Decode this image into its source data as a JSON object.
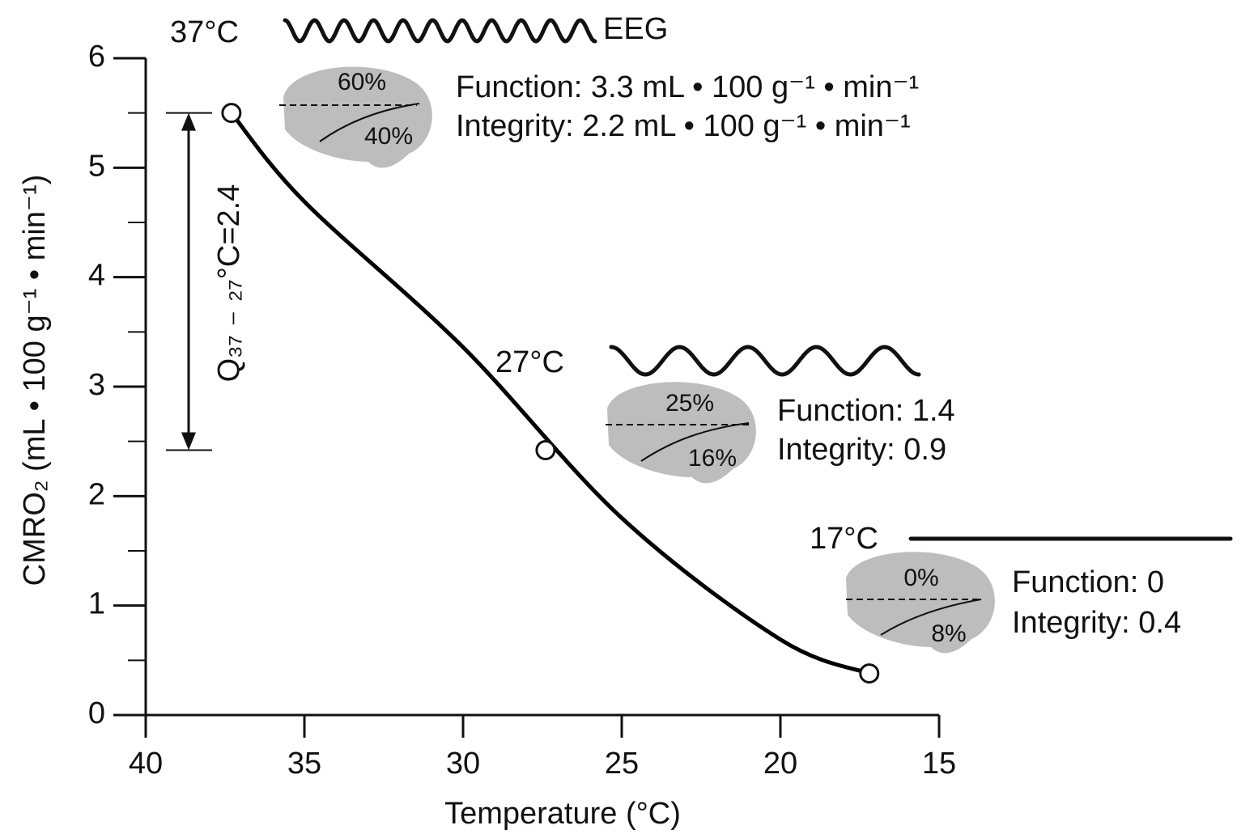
{
  "chart_data": {
    "type": "line",
    "x_label": "Temperature (°C)",
    "y_label": "CMRO₂ (mL • 100 g⁻¹ • min⁻¹)",
    "xlim": [
      40,
      15
    ],
    "xticks": [
      40,
      35,
      30,
      25,
      20,
      15
    ],
    "ylim": [
      0,
      6
    ],
    "yticks": [
      0,
      1,
      2,
      3,
      4,
      5,
      6
    ],
    "y_minor_ticks": [
      0.5,
      1.5,
      2.5,
      3.5,
      4.5,
      5.5
    ],
    "series": [
      {
        "color": "#000000",
        "x": [
          37.3,
          35,
          30,
          25,
          20,
          17.2
        ],
        "values": [
          5.5,
          4.69,
          3.36,
          1.8,
          0.69,
          0.38
        ]
      }
    ],
    "points": {
      "x": [
        37.3,
        27.4,
        17.2
      ],
      "values": [
        5.5,
        2.42,
        0.38
      ]
    },
    "annotations": [
      "37°C",
      "EEG",
      "60%",
      "40%",
      "Function: 3.3 mL • 100 g⁻¹ •  min⁻¹",
      "Integrity: 2.2 mL • 100 g⁻¹ •  min⁻¹",
      "27°C",
      "25%",
      "16%",
      "Function: 1.4",
      "Integrity: 0.9",
      "17°C",
      "0%",
      "8%",
      "Function: 0",
      "Integrity: 0.4",
      "Q₃₇ ₋ ₂₇°C=2.4"
    ]
  }
}
